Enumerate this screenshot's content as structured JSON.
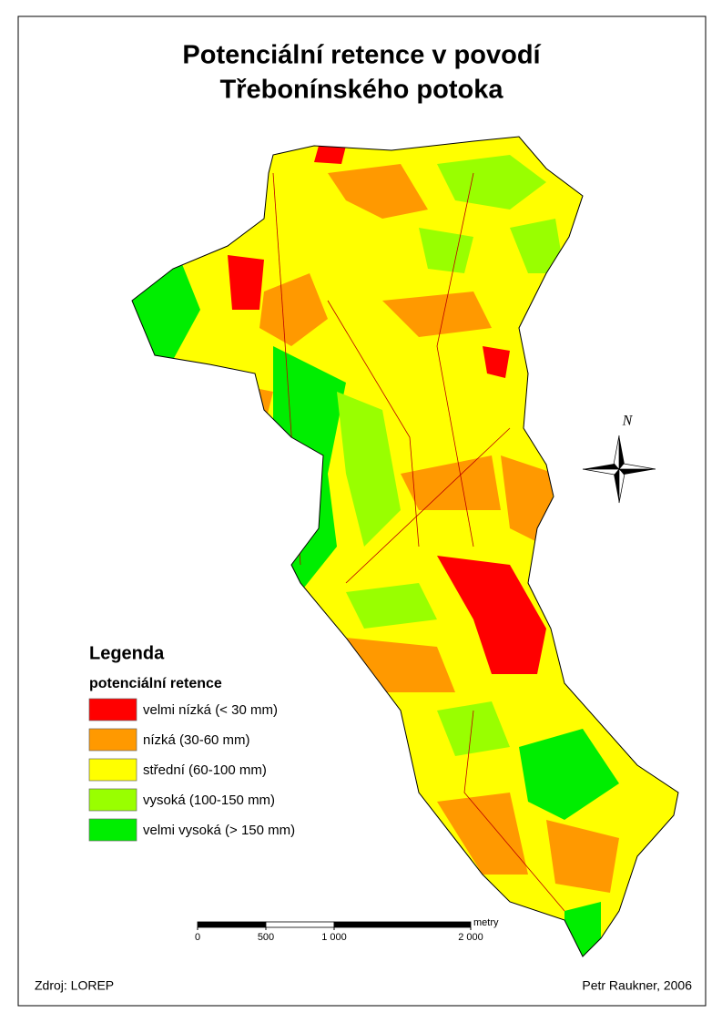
{
  "title": [
    "Potenciální retence v povodí",
    "Třebonínského potoka"
  ],
  "legend": {
    "title": "Legenda",
    "subtitle": "potenciální retence",
    "items": [
      {
        "label": "velmi nízká (< 30 mm)",
        "color": "#ff0000"
      },
      {
        "label": "nízká (30-60 mm)",
        "color": "#ff9900"
      },
      {
        "label": "střední (60-100 mm)",
        "color": "#ffff00"
      },
      {
        "label": "vysoká (100-150 mm)",
        "color": "#99ff00"
      },
      {
        "label": "velmi vysoká (> 150 mm)",
        "color": "#00ee00"
      }
    ]
  },
  "north": "N",
  "scale_bar": {
    "unit": "metry",
    "ticks": [
      0,
      500,
      {
        "value": 1000,
        "label": "1 000"
      },
      {
        "value": 2000,
        "label": "2 000"
      }
    ]
  },
  "footer": {
    "source": "Zdroj: LOREP",
    "author": "Petr Raukner, 2006"
  }
}
